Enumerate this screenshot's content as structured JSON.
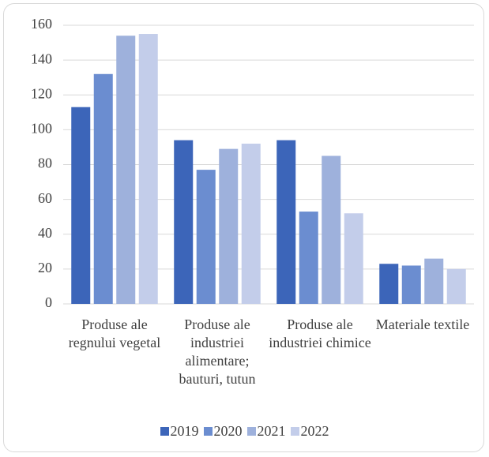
{
  "chart_data": {
    "type": "bar",
    "categories": [
      "Produse ale regnului vegetal",
      "Produse ale industriei alimentare; bauturi, tutun",
      "Produse ale industriei chimice",
      "Materiale textile"
    ],
    "series": [
      {
        "name": "2019",
        "color": "#3c65b9",
        "values": [
          113,
          94,
          94,
          23
        ]
      },
      {
        "name": "2020",
        "color": "#6b8dd0",
        "values": [
          132,
          77,
          53,
          22
        ]
      },
      {
        "name": "2021",
        "color": "#9eb1dc",
        "values": [
          154,
          89,
          85,
          26
        ]
      },
      {
        "name": "2022",
        "color": "#c3cdea",
        "values": [
          155,
          92,
          52,
          20
        ]
      }
    ],
    "ylim": [
      0,
      160
    ],
    "yticks": [
      0,
      20,
      40,
      60,
      80,
      100,
      120,
      140,
      160
    ],
    "grid": true,
    "legend": "bottom"
  }
}
